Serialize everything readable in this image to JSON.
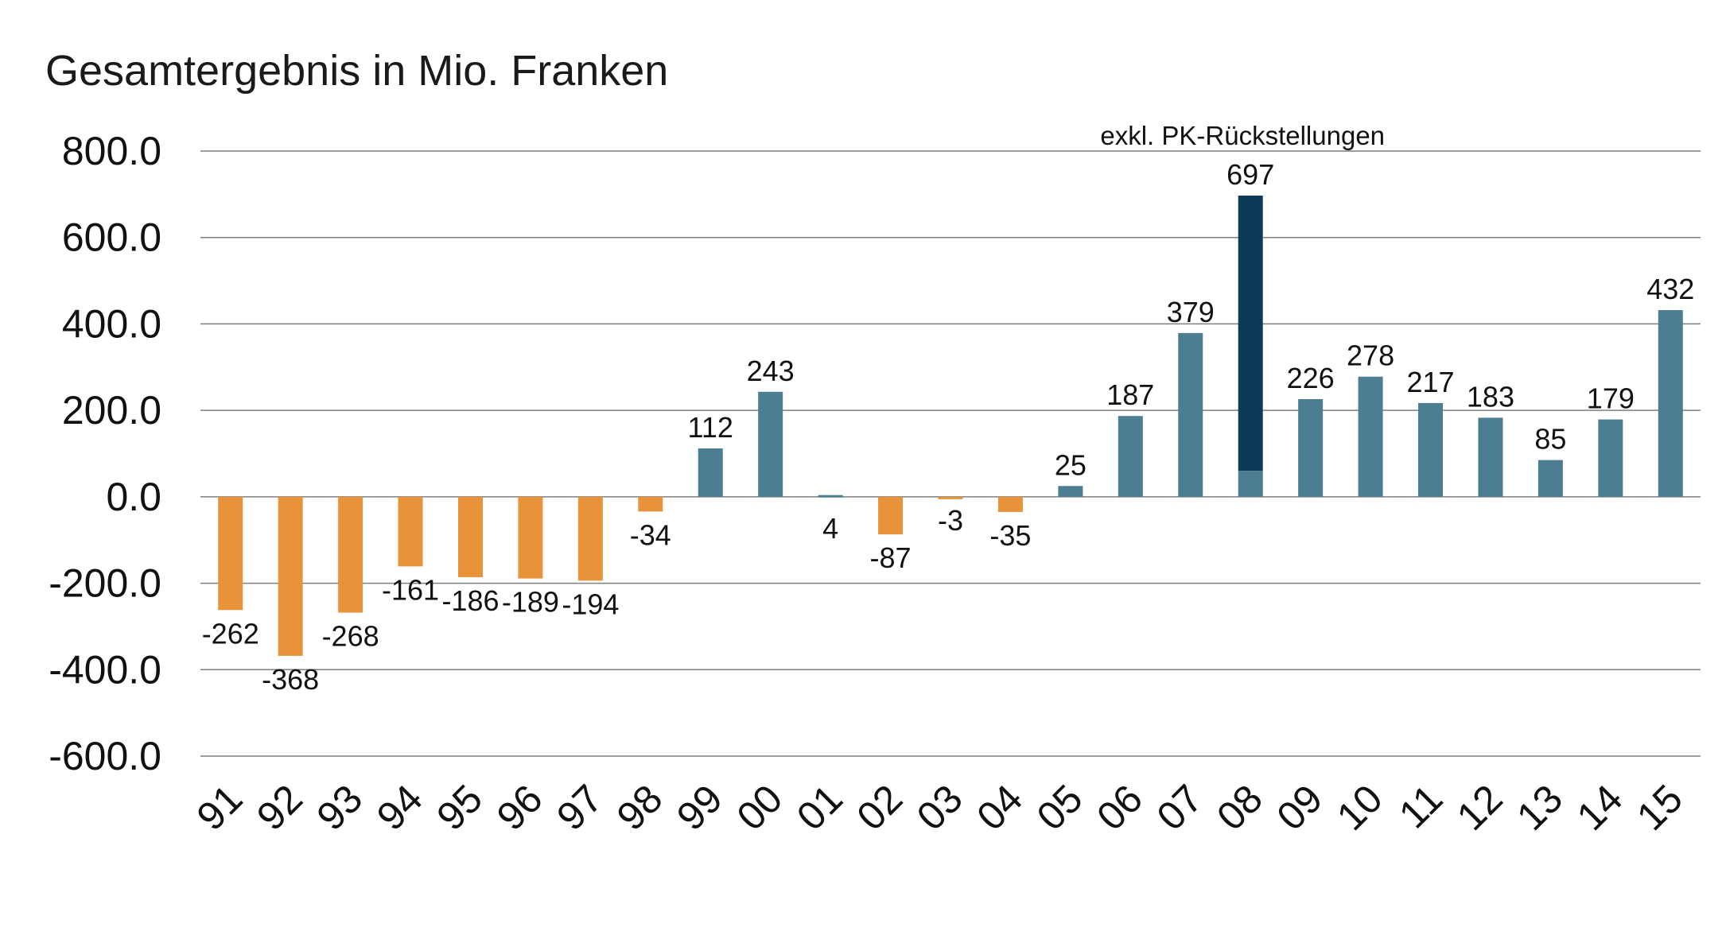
{
  "chart_data": {
    "type": "bar",
    "title": "Gesamtergebnis in Mio. Franken",
    "xlabel": "",
    "ylabel": "",
    "ylim": [
      -600,
      800
    ],
    "yticks": [
      800,
      600,
      400,
      200,
      0,
      -200,
      -400,
      -600
    ],
    "ytick_labels": [
      "800.0",
      "600.0",
      "400.0",
      "200.0",
      "0.0",
      "-200.0",
      "-400.0",
      "-600.0"
    ],
    "grid": true,
    "legend": "none",
    "categories": [
      "91",
      "92",
      "93",
      "94",
      "95",
      "96",
      "97",
      "98",
      "99",
      "00",
      "01",
      "02",
      "03",
      "04",
      "05",
      "06",
      "07",
      "08",
      "09",
      "10",
      "11",
      "12",
      "13",
      "14",
      "15"
    ],
    "values": [
      -262,
      -368,
      -268,
      -161,
      -186,
      -189,
      -194,
      -34,
      112,
      243,
      4,
      -87,
      -3,
      -35,
      25,
      187,
      379,
      697,
      226,
      278,
      217,
      183,
      85,
      179,
      432
    ],
    "data_labels": [
      "-262",
      "-368",
      "-268",
      "-161",
      "-186",
      "-189",
      "-194",
      "-34",
      "112",
      "243",
      "4",
      "-87",
      "-3",
      "-35",
      "25",
      "187",
      "379",
      "697",
      "226",
      "278",
      "217",
      "183",
      "85",
      "179",
      "432"
    ],
    "colors": {
      "negative": "#E8923A",
      "positive": "#4C7D93",
      "highlight": "#0E3A57"
    },
    "highlight": {
      "category": "08",
      "base_value": 60,
      "total_value": 697,
      "annotation": "exkl. PK-Rückstellungen"
    }
  }
}
